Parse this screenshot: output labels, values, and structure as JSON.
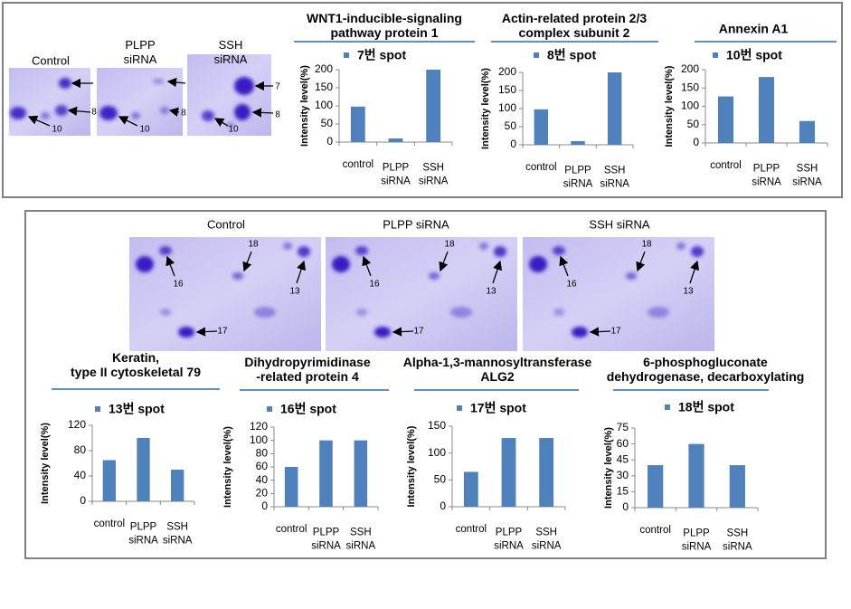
{
  "gels": {
    "top": {
      "labels": [
        "Control",
        "PLPP\nsiRNA",
        "SSH\nsiRNA"
      ],
      "spots": [
        "7",
        "8",
        "10"
      ]
    },
    "bottom": {
      "labels": [
        "Control",
        "PLPP siRNA",
        "SSH siRNA"
      ],
      "spots": [
        "18",
        "16",
        "13",
        "17"
      ]
    }
  },
  "chart_data": [
    {
      "type": "bar",
      "title": "WNT1-inducible-signaling\npathway protein 1",
      "categories": [
        "control",
        "PLPP siRNA",
        "SSH siRNA"
      ],
      "series": [
        {
          "name": "7번 spot",
          "color": "#4f81bd",
          "values": [
            98,
            10,
            200
          ]
        }
      ],
      "ylabel": "Intensity level(%)",
      "ylim": [
        0,
        200
      ],
      "yticks": [
        0,
        50,
        100,
        150,
        200
      ]
    },
    {
      "type": "bar",
      "title": "Actin-related protein 2/3\ncomplex  subunit 2",
      "categories": [
        "control",
        "PLPP siRNA",
        "SSH siRNA"
      ],
      "series": [
        {
          "name": "8번 spot",
          "color": "#4f81bd",
          "values": [
            98,
            10,
            200
          ]
        }
      ],
      "ylabel": "Intensity level(%)",
      "ylim": [
        0,
        200
      ],
      "yticks": [
        0,
        50,
        100,
        150,
        200
      ]
    },
    {
      "type": "bar",
      "title": "Annexin A1",
      "categories": [
        "control",
        "PLPP siRNA",
        "SSH siRNA"
      ],
      "series": [
        {
          "name": "10번 spot",
          "color": "#4f81bd",
          "values": [
            127,
            180,
            60
          ]
        }
      ],
      "ylabel": "Intensity level(%)",
      "ylim": [
        0,
        200
      ],
      "yticks": [
        0,
        50,
        100,
        150,
        200
      ]
    },
    {
      "type": "bar",
      "title": "Keratin,\ntype II cytoskeletal 79",
      "categories": [
        "control",
        "PLPP siRNA",
        "SSH siRNA"
      ],
      "series": [
        {
          "name": "13번 spot",
          "color": "#4f81bd",
          "values": [
            65,
            100,
            50
          ]
        }
      ],
      "ylabel": "Intensity level(%)",
      "ylim": [
        0,
        120
      ],
      "yticks": [
        0,
        40,
        80,
        120
      ]
    },
    {
      "type": "bar",
      "title": "Dihydropyrimidinase\n-related protein 4",
      "categories": [
        "control",
        "PLPP siRNA",
        "SSH siRNA"
      ],
      "series": [
        {
          "name": "16번 spot",
          "color": "#4f81bd",
          "values": [
            60,
            100,
            100
          ]
        }
      ],
      "ylabel": "Intensity level(%)",
      "ylim": [
        0,
        120
      ],
      "yticks": [
        0,
        20,
        40,
        60,
        80,
        100,
        120
      ]
    },
    {
      "type": "bar",
      "title": "Alpha-1,3-mannosyltransferase\nALG2",
      "categories": [
        "control",
        "PLPP siRNA",
        "SSH siRNA"
      ],
      "series": [
        {
          "name": "17번 spot",
          "color": "#4f81bd",
          "values": [
            65,
            128,
            128
          ]
        }
      ],
      "ylabel": "Intensity level(%)",
      "ylim": [
        0,
        150
      ],
      "yticks": [
        0,
        50,
        100,
        150
      ]
    },
    {
      "type": "bar",
      "title": "6-phosphogluconate\ndehydrogenase, decarboxylating",
      "categories": [
        "control",
        "PLPP siRNA",
        "SSH siRNA"
      ],
      "series": [
        {
          "name": "18번 spot",
          "color": "#4f81bd",
          "values": [
            40,
            60,
            40
          ]
        }
      ],
      "ylabel": "Intensity level(%)",
      "ylim": [
        0,
        75
      ],
      "yticks": [
        0,
        15,
        30,
        45,
        60,
        75
      ]
    }
  ]
}
